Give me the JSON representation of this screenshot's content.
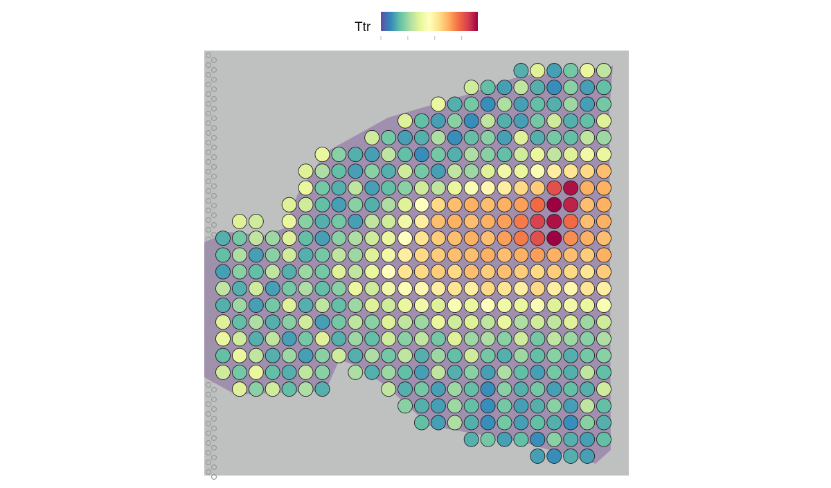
{
  "chart_data": {
    "type": "spatial",
    "legend_title": "Ttr",
    "colors": [
      "#5E4FA2",
      "#3288BD",
      "#66C2A5",
      "#ABDDA4",
      "#E6F598",
      "#FFFFBF",
      "#FEE08B",
      "#FDAE61",
      "#F46D43",
      "#D53E4F",
      "#9E0142"
    ],
    "clim": [
      0,
      3.6
    ],
    "cticks": [
      0,
      1,
      2,
      3
    ],
    "values": [
      [
        null,
        null,
        null,
        null,
        null,
        null,
        null,
        null,
        null,
        null,
        null,
        null,
        null,
        null,
        null,
        null,
        null,
        null,
        0.6,
        1.4,
        0.5,
        0.8,
        1.5,
        1.2
      ],
      [
        null,
        null,
        null,
        null,
        null,
        null,
        null,
        null,
        null,
        null,
        null,
        null,
        null,
        null,
        null,
        1.3,
        0.7,
        0.5,
        1.2,
        0.6,
        0.4,
        0.9,
        0.5,
        0.7
      ],
      [
        null,
        null,
        null,
        null,
        null,
        null,
        null,
        null,
        null,
        null,
        null,
        null,
        null,
        1.5,
        0.6,
        0.8,
        0.4,
        1.1,
        0.5,
        0.7,
        0.6,
        1.0,
        0.5,
        0.8
      ],
      [
        null,
        null,
        null,
        null,
        null,
        null,
        null,
        null,
        null,
        null,
        null,
        1.4,
        0.7,
        0.5,
        0.9,
        0.4,
        1.2,
        0.6,
        0.5,
        0.8,
        1.3,
        0.6,
        0.7,
        1.4
      ],
      [
        null,
        null,
        null,
        null,
        null,
        null,
        null,
        null,
        null,
        1.3,
        0.8,
        0.5,
        0.6,
        1.1,
        0.4,
        0.7,
        0.9,
        0.5,
        1.4,
        0.6,
        0.8,
        0.7,
        1.2,
        1.0
      ],
      [
        null,
        null,
        null,
        null,
        null,
        null,
        1.5,
        0.9,
        0.6,
        0.5,
        1.2,
        0.7,
        0.4,
        0.8,
        0.6,
        1.1,
        0.9,
        0.7,
        1.3,
        1.5,
        1.2,
        1.4,
        1.6,
        1.5
      ],
      [
        null,
        null,
        null,
        null,
        null,
        1.4,
        1.1,
        0.7,
        0.5,
        0.9,
        0.6,
        1.3,
        0.8,
        0.5,
        1.2,
        1.0,
        1.4,
        1.6,
        1.5,
        1.7,
        2.0,
        2.1,
        2.2,
        2.4
      ],
      [
        null,
        null,
        null,
        null,
        null,
        1.5,
        0.8,
        0.6,
        1.2,
        0.5,
        0.7,
        0.9,
        1.3,
        1.2,
        1.5,
        1.7,
        1.9,
        2.0,
        2.2,
        2.3,
        3.1,
        3.5,
        2.5,
        2.5
      ],
      [
        null,
        null,
        null,
        null,
        1.4,
        1.3,
        0.7,
        0.5,
        0.9,
        0.6,
        1.1,
        1.4,
        1.8,
        2.2,
        2.4,
        2.5,
        2.4,
        2.5,
        2.6,
        2.9,
        3.6,
        3.4,
        2.4,
        2.5
      ],
      [
        null,
        1.4,
        1.3,
        null,
        1.5,
        0.9,
        0.6,
        0.8,
        0.5,
        1.2,
        1.3,
        1.6,
        2.0,
        2.4,
        2.5,
        2.4,
        2.5,
        2.6,
        2.8,
        3.2,
        3.5,
        2.9,
        2.4,
        2.5
      ],
      [
        0.6,
        0.8,
        1.2,
        1.0,
        1.4,
        0.7,
        0.5,
        0.9,
        1.1,
        1.3,
        1.5,
        1.8,
        2.1,
        2.3,
        2.4,
        2.5,
        2.4,
        2.6,
        2.8,
        3.1,
        3.6,
        2.7,
        2.5,
        2.4
      ],
      [
        0.7,
        1.1,
        0.5,
        0.9,
        1.3,
        0.6,
        0.8,
        1.2,
        1.0,
        1.4,
        1.6,
        2.0,
        2.2,
        2.3,
        2.4,
        2.4,
        2.5,
        2.4,
        2.5,
        2.6,
        2.5,
        2.4,
        2.3,
        2.5
      ],
      [
        0.5,
        0.9,
        0.7,
        1.2,
        0.6,
        1.0,
        0.8,
        1.4,
        1.2,
        1.5,
        1.8,
        2.1,
        2.2,
        2.3,
        2.2,
        2.4,
        2.3,
        2.4,
        2.3,
        2.2,
        2.3,
        2.2,
        2.1,
        2.3
      ],
      [
        1.2,
        0.6,
        1.3,
        0.5,
        0.8,
        1.1,
        0.7,
        0.9,
        1.5,
        1.3,
        1.6,
        1.7,
        1.9,
        2.0,
        2.1,
        2.0,
        2.2,
        2.1,
        2.0,
        2.2,
        2.0,
        1.9,
        2.1,
        2.0
      ],
      [
        0.6,
        1.0,
        0.5,
        0.8,
        1.4,
        0.6,
        1.2,
        0.7,
        1.0,
        1.4,
        1.3,
        1.5,
        1.6,
        1.4,
        1.7,
        1.5,
        1.8,
        1.6,
        1.5,
        1.7,
        1.4,
        1.6,
        1.5,
        1.7
      ],
      [
        1.4,
        0.7,
        1.1,
        0.6,
        0.9,
        1.3,
        0.5,
        0.8,
        1.2,
        0.9,
        1.4,
        1.2,
        1.0,
        1.5,
        1.3,
        1.4,
        1.2,
        1.5,
        1.1,
        1.3,
        1.2,
        1.4,
        1.0,
        1.3
      ],
      [
        1.5,
        1.3,
        0.6,
        1.2,
        0.5,
        0.8,
        1.4,
        0.6,
        1.0,
        0.7,
        1.3,
        0.9,
        1.2,
        0.8,
        1.4,
        1.0,
        1.1,
        0.9,
        1.3,
        0.8,
        1.2,
        1.0,
        0.9,
        1.1
      ],
      [
        0.7,
        1.5,
        1.2,
        0.6,
        1.0,
        0.5,
        0.9,
        1.3,
        0.6,
        1.1,
        0.8,
        1.2,
        0.6,
        1.0,
        0.7,
        1.3,
        0.8,
        0.6,
        1.0,
        0.7,
        0.9,
        0.6,
        0.8,
        0.9
      ],
      [
        1.3,
        0.8,
        1.5,
        0.7,
        0.6,
        1.2,
        0.9,
        null,
        1.1,
        0.6,
        1.0,
        0.7,
        0.5,
        1.2,
        0.6,
        0.9,
        0.5,
        1.1,
        0.7,
        0.5,
        0.8,
        0.6,
        1.2,
        0.7
      ],
      [
        null,
        1.4,
        0.9,
        1.3,
        0.7,
        1.1,
        0.6,
        null,
        null,
        null,
        1.2,
        0.6,
        0.8,
        0.5,
        1.0,
        0.7,
        0.4,
        0.9,
        0.6,
        0.8,
        0.5,
        0.7,
        0.6,
        1.3
      ],
      [
        null,
        null,
        null,
        null,
        null,
        null,
        null,
        null,
        null,
        null,
        null,
        0.9,
        0.6,
        0.5,
        1.0,
        0.7,
        0.4,
        0.8,
        0.5,
        0.6,
        0.9,
        0.5,
        1.2,
        0.7
      ],
      [
        null,
        null,
        null,
        null,
        null,
        null,
        null,
        null,
        null,
        null,
        null,
        null,
        0.7,
        0.5,
        1.1,
        0.6,
        0.4,
        0.8,
        0.5,
        0.7,
        0.6,
        0.4,
        0.9,
        0.6
      ],
      [
        null,
        null,
        null,
        null,
        null,
        null,
        null,
        null,
        null,
        null,
        null,
        null,
        null,
        null,
        null,
        0.6,
        0.8,
        0.5,
        0.7,
        0.4,
        0.9,
        0.6,
        0.5,
        0.7
      ],
      [
        null,
        null,
        null,
        null,
        null,
        null,
        null,
        null,
        null,
        null,
        null,
        null,
        null,
        null,
        null,
        null,
        null,
        null,
        null,
        0.5,
        0.4,
        0.6,
        0.5,
        null
      ]
    ]
  }
}
